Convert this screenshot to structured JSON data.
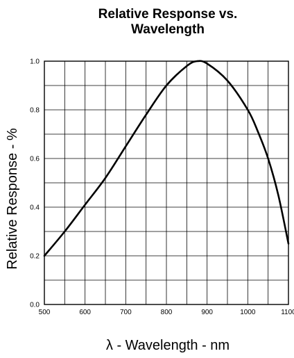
{
  "chart_data": {
    "type": "line",
    "title_lines": [
      "Relative Response vs.",
      "Wavelength"
    ],
    "xlabel": "λ - Wavelength - nm",
    "ylabel": "Relative Response - %",
    "xlim": [
      500,
      1100
    ],
    "ylim": [
      0.0,
      1.0
    ],
    "x_ticks": [
      500,
      600,
      700,
      800,
      900,
      1000,
      1100
    ],
    "x_tick_labels": [
      "500",
      "600",
      "700",
      "800",
      "900",
      "1000",
      "1100"
    ],
    "y_ticks": [
      0.0,
      0.2,
      0.4,
      0.6,
      0.8,
      1.0
    ],
    "y_tick_labels": [
      "0.0",
      "0.2",
      "0.4",
      "0.6",
      "0.8",
      "1.0"
    ],
    "x_minor_step": 50,
    "y_minor_step": 0.1,
    "grid": true,
    "series": [
      {
        "color": "#000000",
        "x": [
          500,
          550,
          600,
          650,
          700,
          750,
          800,
          850,
          875,
          900,
          950,
          1000,
          1025,
          1050,
          1075,
          1100
        ],
        "y": [
          0.2,
          0.3,
          0.41,
          0.52,
          0.65,
          0.78,
          0.9,
          0.98,
          1.0,
          0.99,
          0.92,
          0.8,
          0.71,
          0.6,
          0.45,
          0.25
        ]
      }
    ]
  }
}
